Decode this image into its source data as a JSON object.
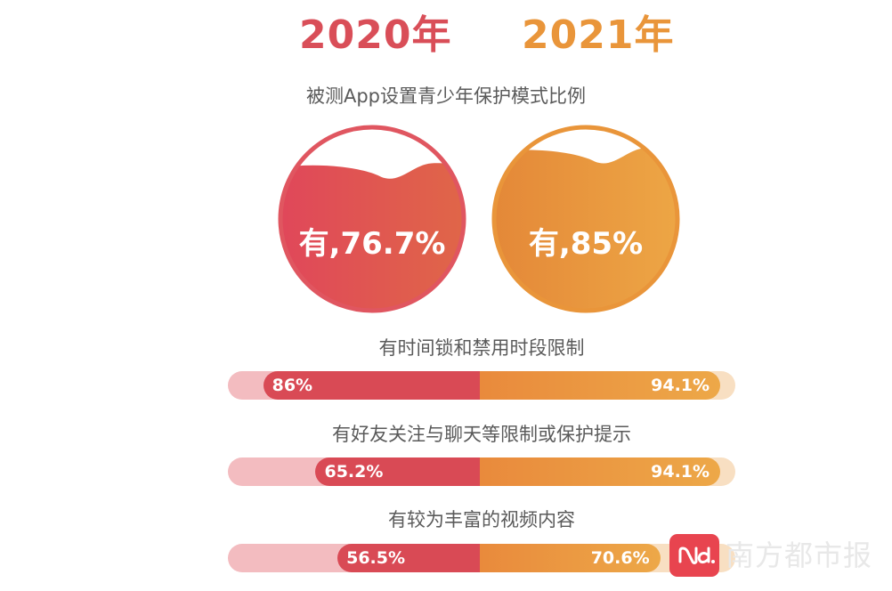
{
  "chart_data": {
    "type": "bar",
    "title": "被测App设置青少年保护模式比例",
    "years": [
      "2020年",
      "2021年"
    ],
    "colors": {
      "y2020": "#d94a55",
      "y2021": "#e98a3c"
    },
    "headline": [
      {
        "year": "2020年",
        "value": 76.7,
        "label": "有,76.7%"
      },
      {
        "year": "2021年",
        "value": 85,
        "label": "有,85%"
      }
    ],
    "categories": [
      {
        "name": "有时间锁和禁用时段限制",
        "v2020": 86,
        "v2021": 94.1,
        "label2020": "86%",
        "label2021": "94.1%"
      },
      {
        "name": "有好友关注与聊天等限制或保护提示",
        "v2020": 65.2,
        "v2021": 94.1,
        "label2020": "65.2%",
        "label2021": "94.1%"
      },
      {
        "name": "有较为丰富的视频内容",
        "v2020": 56.5,
        "v2021": 70.6,
        "label2020": "56.5%",
        "label2021": "70.6%"
      }
    ]
  },
  "watermark": {
    "text": "南方都市报",
    "icon": "nd-logo-icon"
  }
}
